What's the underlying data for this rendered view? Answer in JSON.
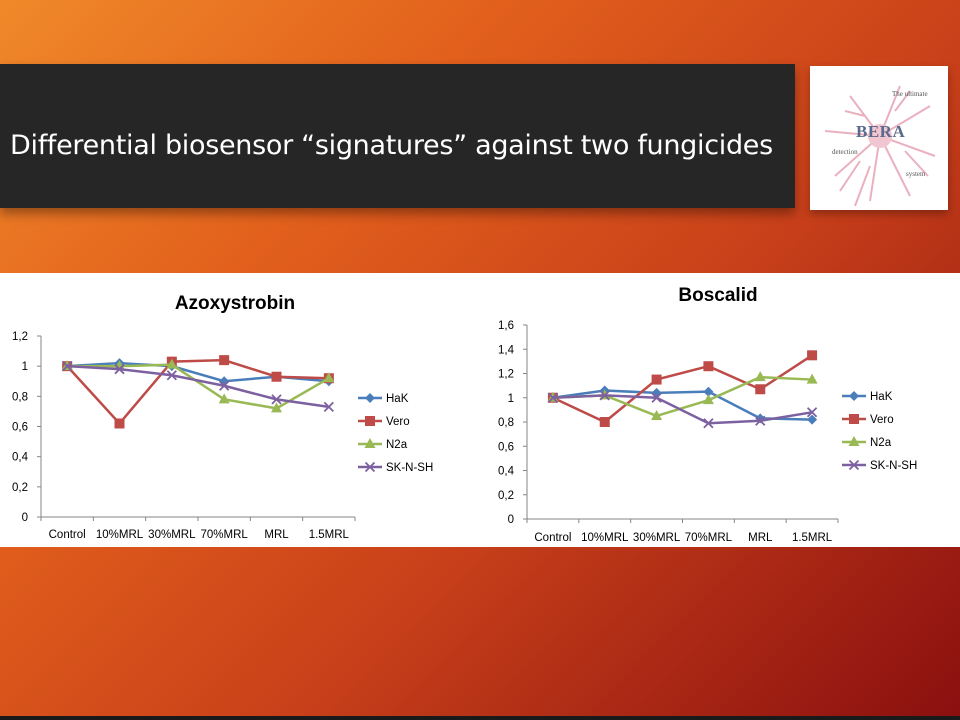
{
  "slide": {
    "title": "Differential biosensor “signatures” against two fungicides"
  },
  "logo": {
    "brand": "BERA",
    "tagline_top": "The ultimate",
    "tagline_mid": "detection",
    "tagline_bottom": "system"
  },
  "colors": {
    "HaK": "#4a7ebb",
    "Vero": "#be4b48",
    "N2a": "#98b954",
    "SK-N-SH": "#7d60a0"
  },
  "chart_data": [
    {
      "type": "line",
      "title": "Azoxystrobin",
      "categories": [
        "Control",
        "10%MRL",
        "30%MRL",
        "70%MRL",
        "MRL",
        "1.5MRL"
      ],
      "ylim": [
        0,
        1.2
      ],
      "yticks": [
        "0",
        "0,2",
        "0,4",
        "0,6",
        "0,8",
        "1",
        "1,2"
      ],
      "legend": "right",
      "grid": false,
      "series": [
        {
          "name": "HaK",
          "marker": "diamond",
          "values": [
            1.0,
            1.02,
            1.0,
            0.9,
            0.93,
            0.9
          ]
        },
        {
          "name": "Vero",
          "marker": "square",
          "values": [
            1.0,
            0.62,
            1.03,
            1.04,
            0.93,
            0.92
          ]
        },
        {
          "name": "N2a",
          "marker": "triangle",
          "values": [
            1.0,
            1.0,
            1.01,
            0.78,
            0.72,
            0.92
          ]
        },
        {
          "name": "SK-N-SH",
          "marker": "x",
          "values": [
            1.0,
            0.98,
            0.94,
            0.87,
            0.78,
            0.73
          ]
        }
      ]
    },
    {
      "type": "line",
      "title": "Boscalid",
      "categories": [
        "Control",
        "10%MRL",
        "30%MRL",
        "70%MRL",
        "MRL",
        "1.5MRL"
      ],
      "ylim": [
        0,
        1.6
      ],
      "yticks": [
        "0",
        "0,2",
        "0,4",
        "0,6",
        "0,8",
        "1",
        "1,2",
        "1,4",
        "1,6"
      ],
      "legend": "right",
      "grid": false,
      "series": [
        {
          "name": "HaK",
          "marker": "diamond",
          "values": [
            1.0,
            1.06,
            1.04,
            1.05,
            0.83,
            0.82
          ]
        },
        {
          "name": "Vero",
          "marker": "square",
          "values": [
            1.0,
            0.8,
            1.15,
            1.26,
            1.07,
            1.35
          ]
        },
        {
          "name": "N2a",
          "marker": "triangle",
          "values": [
            1.0,
            1.02,
            0.85,
            0.98,
            1.17,
            1.15
          ]
        },
        {
          "name": "SK-N-SH",
          "marker": "x",
          "values": [
            1.0,
            1.02,
            1.0,
            0.79,
            0.81,
            0.88
          ]
        }
      ]
    }
  ]
}
